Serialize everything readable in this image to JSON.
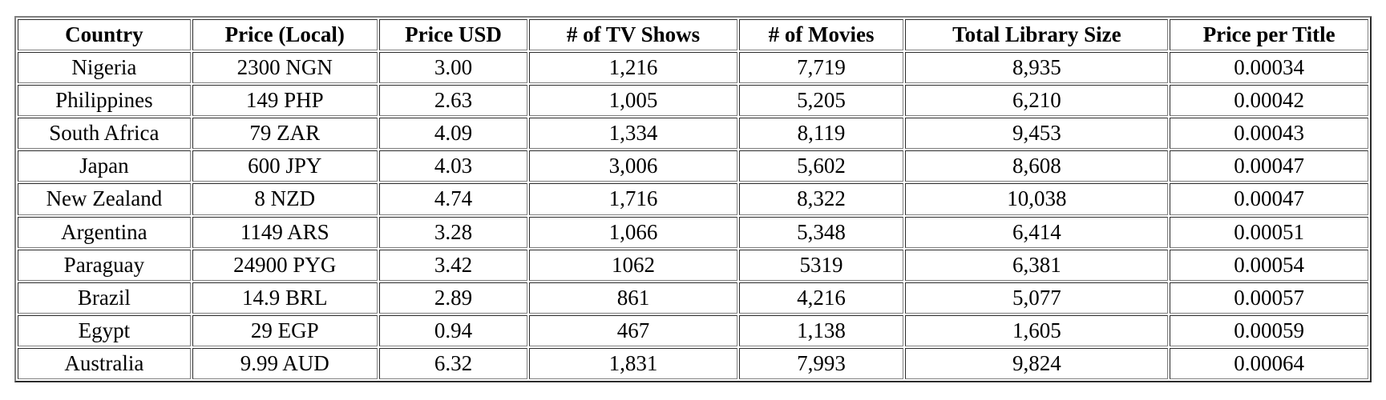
{
  "colors": {
    "table_border": "#808080",
    "text": "#000000",
    "background": "#ffffff"
  },
  "chart_data": {
    "type": "table",
    "columns": [
      "Country",
      "Price (Local)",
      "Price USD",
      "# of TV Shows",
      "# of Movies",
      "Total Library Size",
      "Price per Title"
    ],
    "rows": [
      [
        "Nigeria",
        "2300 NGN",
        "3.00",
        "1,216",
        "7,719",
        "8,935",
        "0.00034"
      ],
      [
        "Philippines",
        "149 PHP",
        "2.63",
        "1,005",
        "5,205",
        "6,210",
        "0.00042"
      ],
      [
        "South Africa",
        "79 ZAR",
        "4.09",
        "1,334",
        "8,119",
        "9,453",
        "0.00043"
      ],
      [
        "Japan",
        "600 JPY",
        "4.03",
        "3,006",
        "5,602",
        "8,608",
        "0.00047"
      ],
      [
        "New Zealand",
        "8 NZD",
        "4.74",
        "1,716",
        "8,322",
        "10,038",
        "0.00047"
      ],
      [
        "Argentina",
        "1149 ARS",
        "3.28",
        "1,066",
        "5,348",
        "6,414",
        "0.00051"
      ],
      [
        "Paraguay",
        "24900 PYG",
        "3.42",
        "1062",
        "5319",
        "6,381",
        "0.00054"
      ],
      [
        "Brazil",
        "14.9 BRL",
        "2.89",
        "861",
        "4,216",
        "5,077",
        "0.00057"
      ],
      [
        "Egypt",
        "29 EGP",
        "0.94",
        "467",
        "1,138",
        "1,605",
        "0.00059"
      ],
      [
        "Australia",
        "9.99 AUD",
        "6.32",
        "1,831",
        "7,993",
        "9,824",
        "0.00064"
      ]
    ]
  }
}
